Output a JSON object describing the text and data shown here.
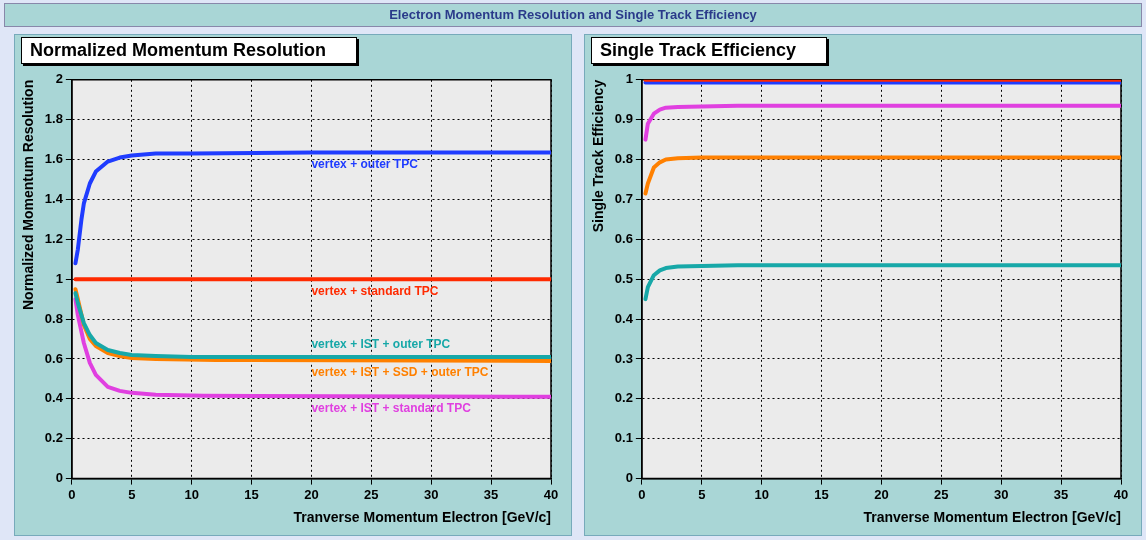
{
  "chart_data": [
    {
      "type": "other",
      "title": "Electron Momentum Resolution and Single Track Efficiency"
    },
    {
      "type": "line",
      "title": "Normalized Momentum Resolution",
      "xlabel": "Tranverse Momentum Electron [GeV/c]",
      "ylabel": "Normalized Momentum Resolution",
      "xlim": [
        0,
        40
      ],
      "xticks": [
        0,
        5,
        10,
        15,
        20,
        25,
        30,
        35,
        40
      ],
      "ylim": [
        0,
        2
      ],
      "yticks": [
        0,
        0.2,
        0.4,
        0.6,
        0.8,
        1,
        1.2,
        1.4,
        1.6,
        1.8,
        2
      ],
      "grid": true,
      "marker": "none",
      "line_style": "solid",
      "series": [
        {
          "name": "vertex + outer TPC",
          "color": "#1f3cff",
          "x": [
            0.3,
            0.5,
            0.8,
            1,
            1.5,
            2,
            3,
            4,
            5,
            7,
            10,
            20,
            40
          ],
          "values": [
            1.08,
            1.15,
            1.3,
            1.38,
            1.48,
            1.54,
            1.59,
            1.61,
            1.62,
            1.63,
            1.63,
            1.635,
            1.635
          ]
        },
        {
          "name": "vertex + standard TPC",
          "color": "#ff2a00",
          "x": [
            0.3,
            40
          ],
          "values": [
            1,
            1
          ]
        },
        {
          "name": "vertex + IST + outer TPC",
          "color": "#17a8a8",
          "x": [
            0.3,
            0.5,
            1,
            1.5,
            2,
            3,
            4,
            5,
            7,
            10,
            40
          ],
          "values": [
            0.93,
            0.88,
            0.78,
            0.72,
            0.68,
            0.645,
            0.63,
            0.62,
            0.615,
            0.61,
            0.61
          ]
        },
        {
          "name": "vertex + IST + SSD + outer TPC",
          "color": "#ff8000",
          "x": [
            0.3,
            0.5,
            1,
            1.5,
            2,
            3,
            4,
            5,
            7,
            12,
            40
          ],
          "values": [
            0.95,
            0.9,
            0.77,
            0.7,
            0.665,
            0.63,
            0.615,
            0.605,
            0.6,
            0.595,
            0.59
          ]
        },
        {
          "name": "vertex + IST + standard TPC",
          "color": "#e040e0",
          "x": [
            0.3,
            0.5,
            1,
            1.5,
            2,
            3,
            4,
            5,
            7,
            11,
            40
          ],
          "values": [
            0.9,
            0.82,
            0.68,
            0.58,
            0.52,
            0.46,
            0.44,
            0.43,
            0.42,
            0.415,
            0.41
          ]
        }
      ]
    },
    {
      "type": "line",
      "title": "Single Track Efficiency",
      "xlabel": "Tranverse Momentum Electron [GeV/c]",
      "ylabel": "Single Track Efficiency",
      "xlim": [
        0,
        40
      ],
      "xticks": [
        0,
        5,
        10,
        15,
        20,
        25,
        30,
        35,
        40
      ],
      "ylim": [
        0,
        1
      ],
      "yticks": [
        0,
        0.1,
        0.2,
        0.3,
        0.4,
        0.5,
        0.6,
        0.7,
        0.8,
        0.9,
        1
      ],
      "grid": true,
      "marker": "none",
      "line_style": "solid",
      "series": [
        {
          "color": "#ff2a00",
          "x": [
            0.3,
            40
          ],
          "values": [
            1,
            1
          ]
        },
        {
          "color": "#1f3cff",
          "x": [
            0.3,
            40
          ],
          "values": [
            0.993,
            0.993
          ]
        },
        {
          "color": "#e040e0",
          "x": [
            0.3,
            0.5,
            1,
            1.5,
            2,
            3,
            5,
            8,
            40
          ],
          "values": [
            0.85,
            0.89,
            0.915,
            0.925,
            0.93,
            0.932,
            0.933,
            0.935,
            0.935
          ]
        },
        {
          "color": "#ff8000",
          "x": [
            0.3,
            0.5,
            1,
            1.5,
            2,
            3,
            5,
            40
          ],
          "values": [
            0.715,
            0.74,
            0.78,
            0.793,
            0.8,
            0.803,
            0.805,
            0.805
          ]
        },
        {
          "color": "#17a8a8",
          "x": [
            0.3,
            0.5,
            1,
            1.5,
            2,
            3,
            5,
            8,
            40
          ],
          "values": [
            0.45,
            0.48,
            0.51,
            0.522,
            0.528,
            0.532,
            0.533,
            0.535,
            0.535
          ]
        }
      ]
    }
  ]
}
